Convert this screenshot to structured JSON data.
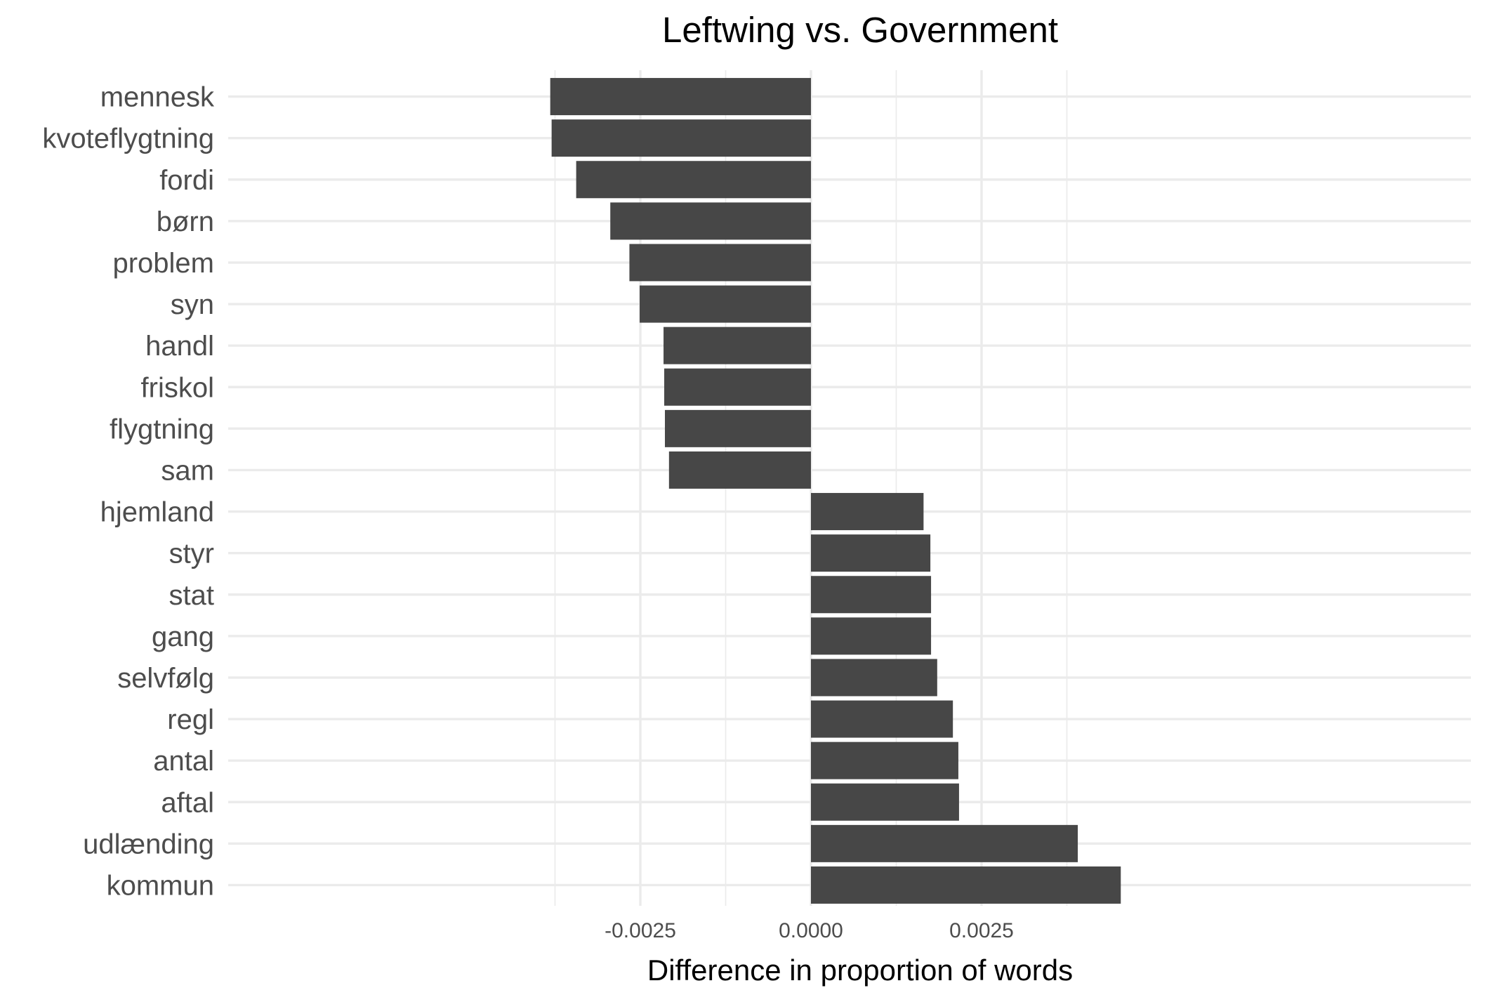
{
  "chart_data": {
    "type": "bar",
    "orientation": "horizontal",
    "title": "Leftwing vs. Government",
    "xlabel": "Difference in proportion of words",
    "ylabel": "",
    "xlim": [
      -0.00455,
      0.00455
    ],
    "x_ticks": [
      -0.0025,
      0.0,
      0.0025
    ],
    "x_tick_labels": [
      "-0.0025",
      "0.0000",
      "0.0025"
    ],
    "x_minor_ticks": [
      -0.00375,
      -0.00125,
      0.00125,
      0.00375
    ],
    "grid": true,
    "legend": "none",
    "bar_color": "#474747",
    "categories": [
      "mennesk",
      "kvoteflygtning",
      "fordi",
      "børn",
      "problem",
      "syn",
      "handl",
      "friskol",
      "flygtning",
      "sam",
      "hjemland",
      "styr",
      "stat",
      "gang",
      "selvfølg",
      "regl",
      "antal",
      "aftal",
      "udlænding",
      "kommun"
    ],
    "values": [
      -0.00382,
      -0.0038,
      -0.00344,
      -0.00294,
      -0.00266,
      -0.00251,
      -0.00216,
      -0.00215,
      -0.00214,
      -0.00208,
      0.00165,
      0.00175,
      0.00176,
      0.00176,
      0.00185,
      0.00208,
      0.00216,
      0.00217,
      0.00391,
      0.00454
    ]
  }
}
